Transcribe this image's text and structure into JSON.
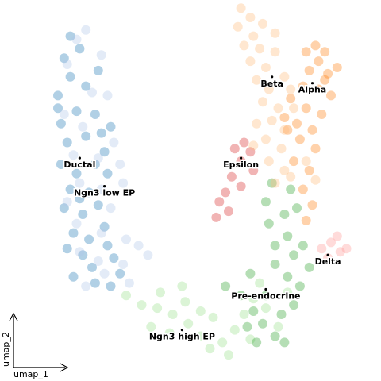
{
  "chart_data": {
    "type": "scatter",
    "title": "",
    "xlabel": "umap_1",
    "ylabel": "umap_2",
    "grid": false,
    "legend": "on data",
    "xlim": [
      -0.5,
      10.5
    ],
    "ylim": [
      -0.5,
      10.5
    ],
    "series": [
      {
        "name": "Ductal",
        "color": "#1f77b4",
        "label_x": 1.3,
        "label_y": 6.0,
        "points": [
          [
            0.8,
            9.2
          ],
          [
            1.3,
            9.5
          ],
          [
            1.0,
            8.6
          ],
          [
            0.6,
            8.0
          ],
          [
            1.5,
            8.3
          ],
          [
            1.9,
            8.8
          ],
          [
            0.7,
            7.1
          ],
          [
            1.2,
            7.5
          ],
          [
            1.8,
            7.4
          ],
          [
            2.3,
            7.0
          ],
          [
            0.9,
            6.5
          ],
          [
            1.5,
            6.7
          ],
          [
            2.1,
            6.2
          ],
          [
            0.7,
            5.8
          ],
          [
            1.2,
            5.5
          ],
          [
            1.8,
            5.8
          ],
          [
            1.0,
            5.0
          ],
          [
            1.6,
            4.9
          ],
          [
            2.2,
            5.5
          ],
          [
            0.8,
            4.4
          ],
          [
            1.4,
            4.2
          ],
          [
            1.9,
            4.5
          ],
          [
            1.1,
            3.6
          ],
          [
            1.6,
            3.4
          ],
          [
            2.1,
            3.8
          ],
          [
            0.9,
            3.1
          ],
          [
            1.4,
            2.9
          ],
          [
            2.2,
            3.2
          ],
          [
            1.7,
            2.5
          ],
          [
            2.4,
            2.8
          ],
          [
            2.6,
            2.3
          ],
          [
            1.1,
            2.2
          ],
          [
            1.8,
            2.0
          ],
          [
            2.3,
            1.9
          ],
          [
            0.6,
            7.6
          ],
          [
            1.0,
            9.9
          ],
          [
            2.0,
            6.8
          ],
          [
            1.3,
            4.7
          ]
        ]
      },
      {
        "name": "Ngn3 low EP",
        "color": "#aec7e8",
        "label_x": 2.1,
        "label_y": 5.1,
        "points": [
          [
            1.5,
            10.1
          ],
          [
            1.2,
            9.8
          ],
          [
            2.0,
            9.3
          ],
          [
            0.9,
            9.0
          ],
          [
            1.7,
            8.1
          ],
          [
            2.2,
            8.0
          ],
          [
            0.8,
            7.4
          ],
          [
            1.4,
            7.0
          ],
          [
            2.4,
            6.5
          ],
          [
            1.1,
            6.1
          ],
          [
            1.9,
            6.0
          ],
          [
            2.6,
            5.8
          ],
          [
            1.3,
            5.2
          ],
          [
            2.0,
            5.0
          ],
          [
            2.7,
            5.2
          ],
          [
            0.9,
            4.6
          ],
          [
            2.3,
            4.4
          ],
          [
            1.2,
            3.9
          ],
          [
            2.0,
            3.6
          ],
          [
            2.8,
            3.4
          ],
          [
            1.3,
            3.0
          ],
          [
            1.9,
            2.7
          ],
          [
            2.7,
            2.6
          ],
          [
            3.2,
            3.2
          ],
          [
            3.5,
            2.9
          ],
          [
            1.5,
            1.9
          ],
          [
            2.1,
            2.3
          ],
          [
            2.9,
            2.0
          ]
        ]
      },
      {
        "name": "Ngn3 high EP",
        "color": "#98df8a",
        "label_x": 4.6,
        "label_y": 0.5,
        "points": [
          [
            2.8,
            1.6
          ],
          [
            3.3,
            1.3
          ],
          [
            3.8,
            1.2
          ],
          [
            4.3,
            1.0
          ],
          [
            3.6,
            0.6
          ],
          [
            4.2,
            0.4
          ],
          [
            4.8,
            0.7
          ],
          [
            5.2,
            0.3
          ],
          [
            5.6,
            0.9
          ],
          [
            4.7,
            1.4
          ],
          [
            5.9,
            0.1
          ],
          [
            6.3,
            0.5
          ],
          [
            6.8,
            0.2
          ],
          [
            5.5,
            -0.1
          ],
          [
            6.1,
            -0.3
          ],
          [
            7.3,
            1.2
          ],
          [
            7.7,
            0.6
          ],
          [
            8.0,
            1.7
          ],
          [
            4.6,
            1.9
          ],
          [
            3.9,
            1.7
          ],
          [
            6.6,
            1.0
          ],
          [
            5.2,
            1.1
          ],
          [
            6.9,
            1.5
          ],
          [
            7.1,
            2.0
          ]
        ]
      },
      {
        "name": "Pre-endocrine",
        "color": "#2ca02c",
        "label_x": 7.3,
        "label_y": 1.8,
        "points": [
          [
            6.0,
            1.9
          ],
          [
            6.5,
            1.6
          ],
          [
            6.9,
            1.1
          ],
          [
            7.2,
            0.7
          ],
          [
            7.6,
            0.3
          ],
          [
            7.0,
            0.1
          ],
          [
            7.8,
            1.0
          ],
          [
            8.2,
            1.3
          ],
          [
            8.0,
            2.2
          ],
          [
            7.6,
            2.6
          ],
          [
            8.4,
            1.9
          ],
          [
            8.2,
            2.9
          ],
          [
            7.6,
            3.2
          ],
          [
            8.0,
            3.5
          ],
          [
            7.4,
            3.9
          ],
          [
            7.9,
            4.2
          ],
          [
            8.3,
            4.4
          ],
          [
            7.3,
            4.6
          ],
          [
            8.1,
            5.0
          ],
          [
            7.5,
            5.2
          ],
          [
            8.5,
            3.2
          ],
          [
            6.8,
            2.3
          ],
          [
            7.3,
            1.6
          ],
          [
            8.7,
            2.5
          ],
          [
            6.7,
            0.6
          ],
          [
            7.9,
            0.1
          ]
        ]
      },
      {
        "name": "Epsilon",
        "color": "#d62728",
        "label_x": 6.5,
        "label_y": 6.0,
        "points": [
          [
            6.3,
            6.3
          ],
          [
            6.6,
            6.5
          ],
          [
            6.8,
            6.2
          ],
          [
            6.5,
            5.9
          ],
          [
            6.2,
            5.4
          ],
          [
            6.0,
            4.9
          ],
          [
            5.8,
            4.6
          ],
          [
            6.1,
            4.3
          ],
          [
            6.5,
            5.1
          ],
          [
            6.9,
            5.6
          ],
          [
            5.7,
            4.1
          ]
        ]
      },
      {
        "name": "Alpha",
        "color": "#ff7f0e",
        "label_x": 8.8,
        "label_y": 8.4,
        "points": [
          [
            8.6,
            9.4
          ],
          [
            8.9,
            9.6
          ],
          [
            9.2,
            9.4
          ],
          [
            9.0,
            9.1
          ],
          [
            8.7,
            8.8
          ],
          [
            9.3,
            8.7
          ],
          [
            9.6,
            8.9
          ],
          [
            8.5,
            8.3
          ],
          [
            9.0,
            8.2
          ],
          [
            9.4,
            8.0
          ],
          [
            8.1,
            7.9
          ],
          [
            8.6,
            7.6
          ],
          [
            9.1,
            7.4
          ],
          [
            8.3,
            7.1
          ],
          [
            8.8,
            6.9
          ],
          [
            7.9,
            7.3
          ],
          [
            8.4,
            6.6
          ],
          [
            8.9,
            6.3
          ],
          [
            8.2,
            5.9
          ],
          [
            8.7,
            5.6
          ],
          [
            9.2,
            8.5
          ],
          [
            8.0,
            6.9
          ],
          [
            8.5,
            5.0
          ],
          [
            8.8,
            4.5
          ],
          [
            8.6,
            4.0
          ]
        ]
      },
      {
        "name": "Beta",
        "color": "#ffbb78",
        "label_x": 7.5,
        "label_y": 8.6,
        "points": [
          [
            6.5,
            10.8
          ],
          [
            6.8,
            10.5
          ],
          [
            6.4,
            10.2
          ],
          [
            6.9,
            9.9
          ],
          [
            6.6,
            9.6
          ],
          [
            7.1,
            9.5
          ],
          [
            6.8,
            9.1
          ],
          [
            7.3,
            8.9
          ],
          [
            7.6,
            9.4
          ],
          [
            7.0,
            8.5
          ],
          [
            7.4,
            8.2
          ],
          [
            7.9,
            8.6
          ],
          [
            7.2,
            7.8
          ],
          [
            7.7,
            7.6
          ],
          [
            8.1,
            8.2
          ],
          [
            7.5,
            7.2
          ],
          [
            7.9,
            6.9
          ],
          [
            7.3,
            6.6
          ],
          [
            7.8,
            6.3
          ],
          [
            7.4,
            5.9
          ],
          [
            7.9,
            5.6
          ],
          [
            7.6,
            5.2
          ],
          [
            8.1,
            5.4
          ],
          [
            8.6,
            5.9
          ],
          [
            8.9,
            5.3
          ],
          [
            7.0,
            7.1
          ],
          [
            6.9,
            6.4
          ],
          [
            7.6,
            10.0
          ],
          [
            8.2,
            7.6
          ],
          [
            7.2,
            10.3
          ]
        ]
      },
      {
        "name": "Delta",
        "color": "#ff9896",
        "label_x": 9.3,
        "label_y": 2.9,
        "points": [
          [
            9.1,
            3.1
          ],
          [
            9.4,
            3.3
          ],
          [
            9.7,
            3.0
          ],
          [
            9.3,
            2.8
          ],
          [
            9.9,
            3.1
          ],
          [
            9.6,
            3.5
          ]
        ]
      }
    ]
  }
}
